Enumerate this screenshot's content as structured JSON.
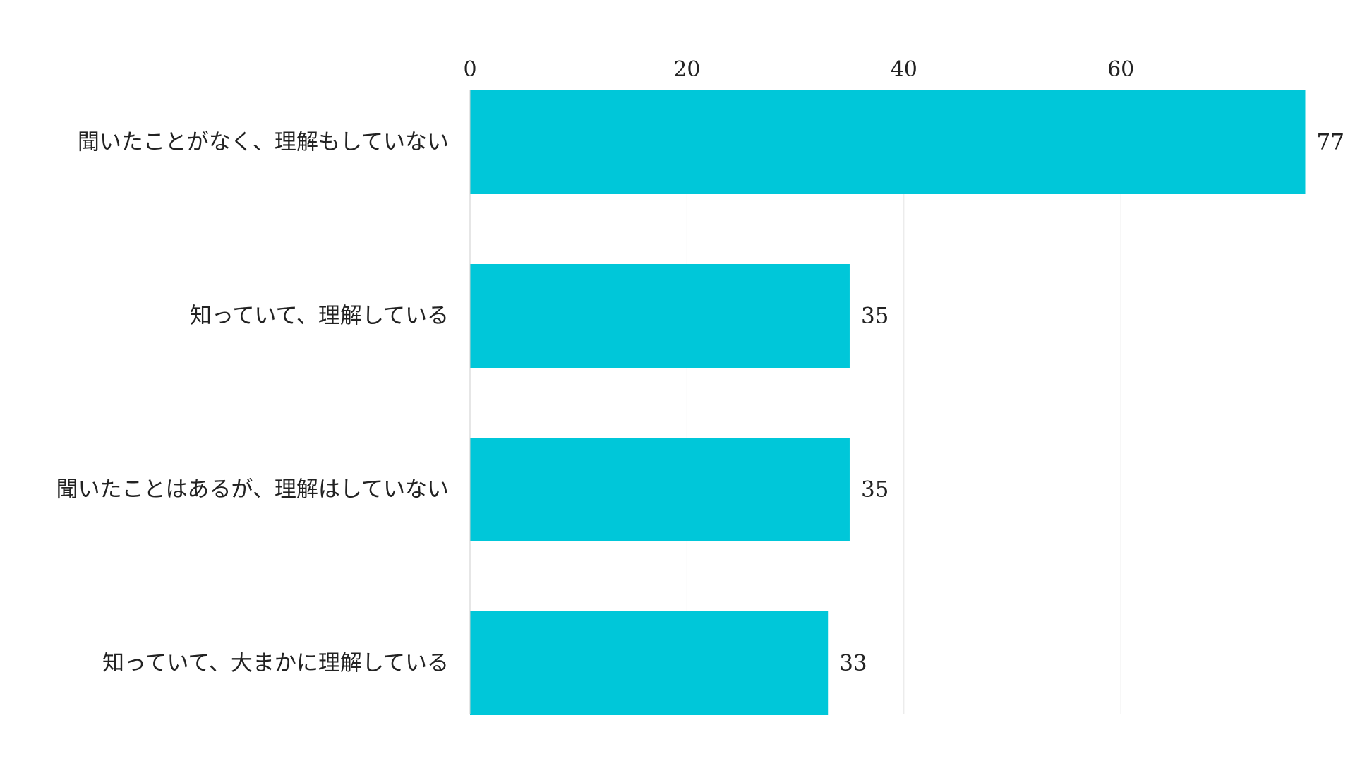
{
  "chart_data": {
    "type": "bar",
    "orientation": "horizontal",
    "categories": [
      "聞いたことがなく、理解もしていない",
      "知っていて、理解している",
      "聞いたことはあるが、理解はしていない",
      "知っていて、大まかに理解している"
    ],
    "values": [
      77,
      35,
      35,
      33
    ],
    "xlim": [
      0,
      77
    ],
    "xticks": [
      0,
      20,
      40,
      60
    ],
    "x_axis_position": "top",
    "grid": true,
    "data_labels": true,
    "legend": false,
    "colors": {
      "bar": "#00C7D9",
      "grid": "#E4E4E4",
      "axis": "#CCCCCC",
      "text": "#222222"
    }
  }
}
